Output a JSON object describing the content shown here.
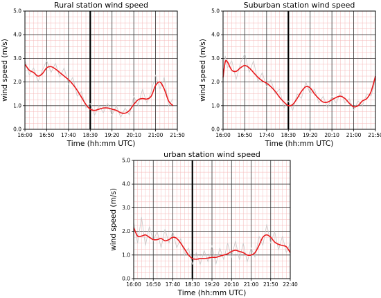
{
  "chart_data": [
    {
      "type": "line",
      "title": "Rural station wind speed",
      "xlabel": "Time (hh:mm UTC)",
      "ylabel": "wind speed (m/s)",
      "ylim": [
        0,
        5
      ],
      "x_tick_labels": [
        "16:00",
        "16:50",
        "17:40",
        "18:30",
        "19:20",
        "20:10",
        "21:00",
        "21:50"
      ],
      "y_tick_labels": [
        "0.0",
        "1.0",
        "2.0",
        "3.0",
        "4.0",
        "5.0"
      ],
      "grid": true,
      "marker_line_x": "18:30",
      "series": [
        {
          "style": "smoothed",
          "color": "#e8191c",
          "x": [
            "16:00",
            "16:10",
            "16:20",
            "16:30",
            "16:40",
            "16:50",
            "17:00",
            "17:10",
            "17:20",
            "17:30",
            "17:40",
            "17:50",
            "18:00",
            "18:10",
            "18:20",
            "18:30",
            "18:40",
            "18:50",
            "19:00",
            "19:10",
            "19:20",
            "19:30",
            "19:40",
            "19:50",
            "20:00",
            "20:10",
            "20:20",
            "20:30",
            "20:40",
            "20:50",
            "21:00",
            "21:10",
            "21:20",
            "21:30",
            "21:40"
          ],
          "values": [
            2.75,
            2.5,
            2.4,
            2.25,
            2.35,
            2.6,
            2.65,
            2.55,
            2.4,
            2.25,
            2.1,
            1.9,
            1.65,
            1.35,
            1.05,
            0.85,
            0.8,
            0.85,
            0.9,
            0.9,
            0.85,
            0.8,
            0.7,
            0.68,
            0.8,
            1.05,
            1.25,
            1.3,
            1.28,
            1.4,
            1.85,
            2.0,
            1.7,
            1.2,
            1.0
          ]
        },
        {
          "style": "raw",
          "color": "#c8c8c8",
          "x": [
            "16:00",
            "16:10",
            "16:20",
            "16:30",
            "16:40",
            "16:50",
            "17:00",
            "17:10",
            "17:20",
            "17:30",
            "17:40",
            "17:50",
            "18:00",
            "18:10",
            "18:20",
            "18:30",
            "18:40",
            "18:50",
            "19:00",
            "19:10",
            "19:20",
            "19:30",
            "19:40",
            "19:50",
            "20:00",
            "20:10",
            "20:20",
            "20:30",
            "20:40",
            "20:50",
            "21:00",
            "21:10",
            "21:20",
            "21:30",
            "21:40"
          ],
          "values": [
            2.9,
            2.3,
            2.6,
            2.0,
            2.5,
            2.9,
            2.4,
            2.8,
            2.2,
            2.6,
            1.9,
            2.2,
            1.4,
            1.6,
            0.9,
            1.1,
            0.6,
            1.0,
            0.7,
            1.1,
            0.6,
            1.0,
            0.5,
            0.9,
            0.6,
            1.4,
            1.0,
            1.7,
            1.1,
            1.6,
            2.3,
            1.7,
            2.2,
            1.0,
            1.3
          ]
        }
      ]
    },
    {
      "type": "line",
      "title": "Suburban station wind speed",
      "xlabel": "Time (hh:mm UTC)",
      "ylabel": "wind speed (m/s)",
      "ylim": [
        0,
        5
      ],
      "x_tick_labels": [
        "16:00",
        "16:50",
        "17:40",
        "18:30",
        "19:20",
        "20:10",
        "21:00",
        "21:50"
      ],
      "y_tick_labels": [
        "0.0",
        "1.0",
        "2.0",
        "3.0",
        "4.0",
        "5.0"
      ],
      "grid": true,
      "marker_line_x": "18:30",
      "series": [
        {
          "style": "smoothed",
          "color": "#e8191c",
          "x": [
            "16:00",
            "16:05",
            "16:10",
            "16:20",
            "16:30",
            "16:40",
            "16:50",
            "17:00",
            "17:10",
            "17:20",
            "17:30",
            "17:40",
            "17:50",
            "18:00",
            "18:10",
            "18:20",
            "18:30",
            "18:40",
            "18:50",
            "19:00",
            "19:10",
            "19:20",
            "19:30",
            "19:40",
            "19:50",
            "20:00",
            "20:10",
            "20:20",
            "20:30",
            "20:40",
            "20:50",
            "21:00",
            "21:10",
            "21:20",
            "21:30",
            "21:40",
            "21:50"
          ],
          "values": [
            2.2,
            2.85,
            2.85,
            2.5,
            2.45,
            2.6,
            2.7,
            2.6,
            2.4,
            2.2,
            2.05,
            1.95,
            1.8,
            1.6,
            1.35,
            1.15,
            1.0,
            1.05,
            1.3,
            1.6,
            1.8,
            1.75,
            1.5,
            1.3,
            1.15,
            1.15,
            1.25,
            1.35,
            1.4,
            1.3,
            1.1,
            0.95,
            1.0,
            1.2,
            1.3,
            1.6,
            2.25
          ]
        },
        {
          "style": "raw",
          "color": "#c8c8c8",
          "x": [
            "16:00",
            "16:05",
            "16:10",
            "16:20",
            "16:30",
            "16:40",
            "16:50",
            "17:00",
            "17:10",
            "17:20",
            "17:30",
            "17:40",
            "17:50",
            "18:00",
            "18:10",
            "18:20",
            "18:30",
            "18:40",
            "18:50",
            "19:00",
            "19:10",
            "19:20",
            "19:30",
            "19:40",
            "19:50",
            "20:00",
            "20:10",
            "20:20",
            "20:30",
            "20:40",
            "20:50",
            "21:00",
            "21:10",
            "21:20",
            "21:30",
            "21:40",
            "21:50"
          ],
          "values": [
            2.0,
            3.1,
            2.6,
            2.9,
            2.1,
            2.8,
            3.2,
            2.4,
            2.9,
            2.0,
            2.4,
            1.8,
            2.1,
            1.5,
            1.7,
            0.9,
            1.2,
            0.8,
            1.5,
            1.3,
            2.0,
            1.5,
            1.7,
            1.1,
            1.4,
            0.9,
            1.4,
            1.1,
            1.6,
            1.1,
            1.3,
            0.8,
            1.2,
            1.0,
            1.5,
            1.4,
            2.1
          ]
        }
      ]
    },
    {
      "type": "line",
      "title": "urban station wind speed",
      "xlabel": "Time (hh:mm UTC)",
      "ylabel": "wind speed (m/s)",
      "ylim": [
        0,
        5
      ],
      "x_tick_labels": [
        "16:00",
        "16:50",
        "17:40",
        "18:30",
        "19:20",
        "20:10",
        "21:00",
        "21:50",
        "22:40"
      ],
      "y_tick_labels": [
        "0.0",
        "1.0",
        "2.0",
        "3.0",
        "4.0",
        "5.0"
      ],
      "grid": true,
      "marker_line_x": "18:30",
      "series": [
        {
          "style": "smoothed",
          "color": "#e8191c",
          "x": [
            "16:00",
            "16:10",
            "16:20",
            "16:30",
            "16:40",
            "16:50",
            "17:00",
            "17:10",
            "17:20",
            "17:30",
            "17:40",
            "17:50",
            "18:00",
            "18:10",
            "18:20",
            "18:30",
            "18:40",
            "18:50",
            "19:00",
            "19:10",
            "19:20",
            "19:30",
            "19:40",
            "19:50",
            "20:00",
            "20:10",
            "20:20",
            "20:30",
            "20:40",
            "20:50",
            "21:00",
            "21:10",
            "21:20",
            "21:30",
            "21:40",
            "21:50",
            "22:00",
            "22:10",
            "22:20",
            "22:30",
            "22:40"
          ],
          "values": [
            2.15,
            1.8,
            1.8,
            1.85,
            1.75,
            1.65,
            1.65,
            1.7,
            1.6,
            1.65,
            1.75,
            1.7,
            1.5,
            1.25,
            1.0,
            0.85,
            0.82,
            0.85,
            0.85,
            0.87,
            0.9,
            0.9,
            0.95,
            1.0,
            1.05,
            1.15,
            1.2,
            1.15,
            1.1,
            1.0,
            1.0,
            1.1,
            1.4,
            1.75,
            1.85,
            1.75,
            1.55,
            1.45,
            1.4,
            1.35,
            1.1
          ]
        },
        {
          "style": "raw",
          "color": "#c8c8c8",
          "x": [
            "16:00",
            "16:10",
            "16:20",
            "16:30",
            "16:40",
            "16:50",
            "17:00",
            "17:10",
            "17:20",
            "17:30",
            "17:40",
            "17:50",
            "18:00",
            "18:10",
            "18:20",
            "18:30",
            "18:40",
            "18:50",
            "19:00",
            "19:10",
            "19:20",
            "19:30",
            "19:40",
            "19:50",
            "20:00",
            "20:10",
            "20:20",
            "20:30",
            "20:40",
            "20:50",
            "21:00",
            "21:10",
            "21:20",
            "21:30",
            "21:40",
            "21:50",
            "22:00",
            "22:10",
            "22:20",
            "22:30",
            "22:40"
          ],
          "values": [
            2.4,
            1.5,
            2.6,
            1.4,
            2.2,
            1.6,
            2.0,
            1.3,
            2.1,
            1.5,
            2.0,
            1.3,
            1.7,
            1.0,
            1.3,
            0.6,
            1.1,
            0.6,
            1.2,
            0.7,
            1.4,
            0.6,
            1.3,
            0.8,
            1.5,
            0.9,
            1.6,
            0.8,
            1.5,
            0.7,
            1.3,
            0.9,
            1.8,
            1.4,
            2.3,
            1.5,
            2.0,
            1.2,
            1.8,
            1.1,
            1.5
          ]
        }
      ]
    }
  ]
}
